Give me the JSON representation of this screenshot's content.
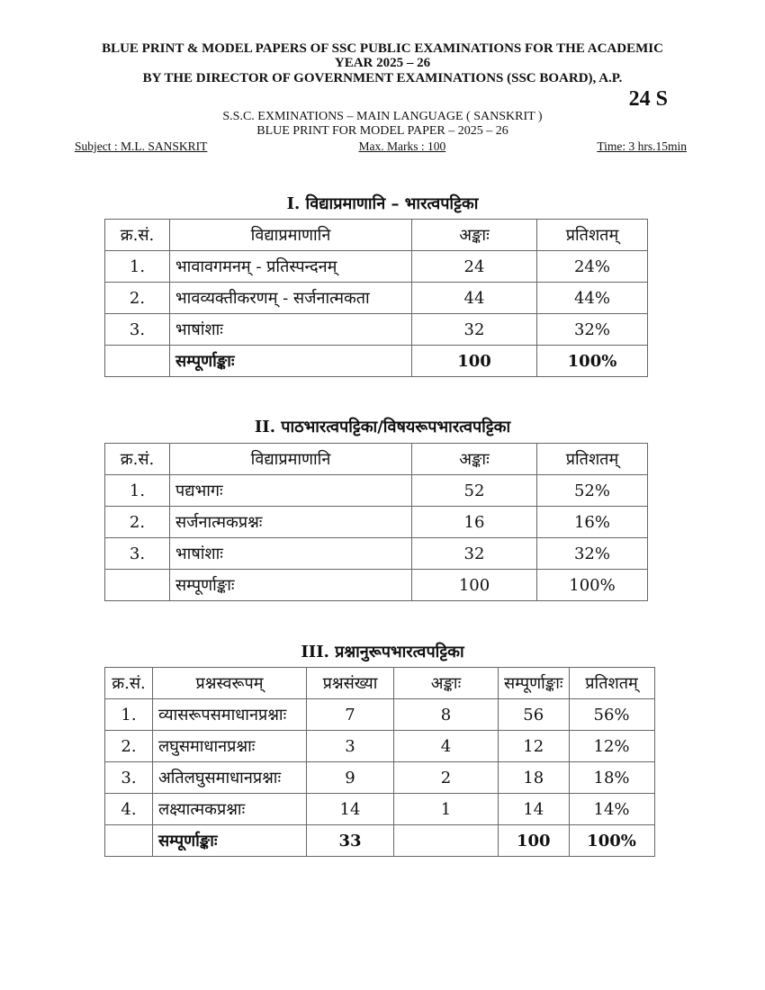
{
  "header": {
    "line1": "BLUE PRINT & MODEL PAPERS OF SSC PUBLIC EXAMINATIONS FOR THE ACADEMIC",
    "line2": "YEAR 2025 – 26",
    "line3": "BY THE DIRECTOR OF GOVERNMENT EXAMINATIONS (SSC BOARD), A.P.",
    "code": "24 S",
    "line4": "S.S.C. EXMINATIONS – MAIN LANGUAGE ( SANSKRIT )",
    "line5": "BLUE PRINT FOR MODEL PAPER – 2025 – 26",
    "subject": "Subject : M.L. SANSKRIT",
    "max_marks": "Max. Marks : 100",
    "time": "Time: 3 hrs.15min"
  },
  "table1": {
    "title": "I. विद्याप्रमाणानि – भारत्वपट्टिका",
    "headers": [
      "क्र.सं.",
      "विद्याप्रमाणानि",
      "अङ्काः",
      "प्रतिशतम्"
    ],
    "rows": [
      [
        "1.",
        "भावावगमनम् - प्रतिस्पन्दनम्",
        "24",
        "24%"
      ],
      [
        "2.",
        "भावव्यक्तीकरणम् - सर्जनात्मकता",
        "44",
        "44%"
      ],
      [
        "3.",
        "भाषांशाः",
        "32",
        "32%"
      ]
    ],
    "total": [
      "",
      "सम्पूर्णाङ्काः",
      "100",
      "100%"
    ]
  },
  "table2": {
    "title": "II. पाठभारत्वपट्टिका/विषयरूपभारत्वपट्टिका",
    "headers": [
      "क्र.सं.",
      "विद्याप्रमाणानि",
      "अङ्काः",
      "प्रतिशतम्"
    ],
    "rows": [
      [
        "1.",
        "पद्यभागः",
        "52",
        "52%"
      ],
      [
        "2.",
        "सर्जनात्मकप्रश्नः",
        "16",
        "16%"
      ],
      [
        "3.",
        "भाषांशाः",
        "32",
        "32%"
      ]
    ],
    "total": [
      "",
      "सम्पूर्णाङ्काः",
      "100",
      "100%"
    ]
  },
  "table3": {
    "title": "III. प्रश्नानुरूपभारत्वपट्टिका",
    "headers": [
      "क्र.सं.",
      "प्रश्नस्वरूपम्",
      "प्रश्नसंख्या",
      "अङ्काः",
      "सम्पूर्णाङ्काः",
      "प्रतिशतम्"
    ],
    "rows": [
      [
        "1.",
        "व्यासरूपसमाधानप्रश्नाः",
        "7",
        "8",
        "56",
        "56%"
      ],
      [
        "2.",
        "लघुसमाधानप्रश्नाः",
        "3",
        "4",
        "12",
        "12%"
      ],
      [
        "3.",
        "अतिलघुसमाधानप्रश्नाः",
        "9",
        "2",
        "18",
        "18%"
      ],
      [
        "4.",
        "लक्ष्यात्मकप्रश्नाः",
        "14",
        "1",
        "14",
        "14%"
      ]
    ],
    "total": [
      "",
      "सम्पूर्णाङ्काः",
      "33",
      "",
      "100",
      "100%"
    ]
  }
}
